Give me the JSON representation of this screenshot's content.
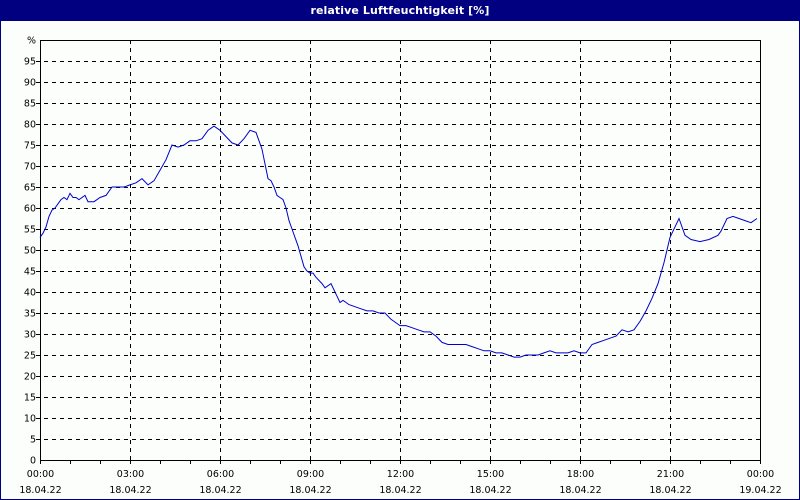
{
  "window": {
    "title": "relative Luftfeuchtigkeit [%]"
  },
  "colors": {
    "title_bar": "#000080",
    "title_text": "#ffffff",
    "background": "#fbfefb",
    "line": "#0000cc",
    "grid": "#000000",
    "axis": "#000000"
  },
  "chart_data": {
    "type": "line",
    "title": "relative Luftfeuchtigkeit [%]",
    "xlabel": "",
    "ylabel": "%",
    "ylim": [
      0,
      100
    ],
    "xlim_hours": [
      0,
      24
    ],
    "grid": true,
    "grid_style": "dashed",
    "legend": "none",
    "y_ticks": [
      "0",
      "5",
      "10",
      "15",
      "20",
      "25",
      "30",
      "35",
      "40",
      "45",
      "50",
      "55",
      "60",
      "65",
      "70",
      "75",
      "80",
      "85",
      "90",
      "95",
      "%"
    ],
    "x_ticks": [
      {
        "time": "00:00",
        "date": "18.04.22"
      },
      {
        "time": "03:00",
        "date": "18.04.22"
      },
      {
        "time": "06:00",
        "date": "18.04.22"
      },
      {
        "time": "09:00",
        "date": "18.04.22"
      },
      {
        "time": "12:00",
        "date": "18.04.22"
      },
      {
        "time": "15:00",
        "date": "18.04.22"
      },
      {
        "time": "18:00",
        "date": "18.04.22"
      },
      {
        "time": "21:00",
        "date": "18.04.22"
      },
      {
        "time": "00:00",
        "date": "19.04.22"
      }
    ],
    "series": [
      {
        "name": "relative Luftfeuchtigkeit",
        "color": "#0000cc",
        "x_hours": [
          0.0,
          0.1,
          0.2,
          0.3,
          0.4,
          0.5,
          0.6,
          0.7,
          0.8,
          0.9,
          1.0,
          1.1,
          1.2,
          1.3,
          1.5,
          1.6,
          1.8,
          2.0,
          2.2,
          2.4,
          2.6,
          2.8,
          3.0,
          3.2,
          3.4,
          3.6,
          3.8,
          4.0,
          4.2,
          4.4,
          4.6,
          4.8,
          5.0,
          5.2,
          5.4,
          5.6,
          5.8,
          6.0,
          6.2,
          6.4,
          6.6,
          6.8,
          7.0,
          7.2,
          7.3,
          7.4,
          7.5,
          7.6,
          7.7,
          7.8,
          7.9,
          8.0,
          8.1,
          8.2,
          8.3,
          8.4,
          8.5,
          8.6,
          8.7,
          8.8,
          8.9,
          9.0,
          9.1,
          9.2,
          9.4,
          9.5,
          9.7,
          9.9,
          10.0,
          10.1,
          10.3,
          10.5,
          10.7,
          10.9,
          11.1,
          11.3,
          11.5,
          11.7,
          11.9,
          12.0,
          12.2,
          12.4,
          12.6,
          12.8,
          13.0,
          13.2,
          13.4,
          13.6,
          13.8,
          14.0,
          14.2,
          14.4,
          14.6,
          14.8,
          15.0,
          15.2,
          15.4,
          15.6,
          15.8,
          16.0,
          16.2,
          16.4,
          16.6,
          16.8,
          17.0,
          17.2,
          17.4,
          17.6,
          17.8,
          18.0,
          18.2,
          18.4,
          18.6,
          18.8,
          19.0,
          19.2,
          19.4,
          19.6,
          19.8,
          20.0,
          20.2,
          20.4,
          20.6,
          20.8,
          21.0,
          21.2,
          21.3,
          21.5,
          21.7,
          22.0,
          22.3,
          22.6,
          22.7,
          22.9,
          23.1,
          23.3,
          23.5,
          23.7,
          23.9
        ],
        "values": [
          53,
          54,
          55.5,
          58,
          59.5,
          60,
          61,
          62,
          62.5,
          62,
          63.5,
          62.5,
          62.5,
          62,
          63,
          61.5,
          61.5,
          62.5,
          63,
          65,
          65,
          65,
          65.5,
          66,
          67,
          65.5,
          66.5,
          69,
          71.5,
          75,
          74.5,
          75,
          76,
          76,
          76.5,
          78.5,
          79.5,
          78.5,
          77,
          75.5,
          75,
          76.5,
          78.5,
          78,
          76,
          74,
          70.5,
          67,
          66.5,
          65,
          63,
          62.5,
          62,
          60,
          57,
          55,
          53,
          51,
          48.5,
          46,
          45,
          44.5,
          44.5,
          43.5,
          42,
          41,
          42,
          39,
          37.5,
          38,
          37,
          36.5,
          36,
          35.5,
          35.5,
          35,
          35,
          33.5,
          32.5,
          32,
          32,
          31.5,
          31,
          30.5,
          30.5,
          29.5,
          28,
          27.5,
          27.5,
          27.5,
          27.5,
          27,
          26.5,
          26,
          26,
          25.5,
          25.5,
          25,
          24.5,
          24.5,
          25,
          25,
          25,
          25.5,
          26,
          25.5,
          25.5,
          25.5,
          26,
          25.5,
          25.5,
          27.5,
          28,
          28.5,
          29,
          29.5,
          31,
          30.5,
          31,
          33,
          35.5,
          38.5,
          42,
          47,
          53,
          56,
          57.5,
          53.5,
          52.5,
          52,
          52.5,
          53.5,
          54.5,
          57.5,
          58,
          57.5,
          57,
          56.5,
          57.5
        ]
      }
    ]
  }
}
